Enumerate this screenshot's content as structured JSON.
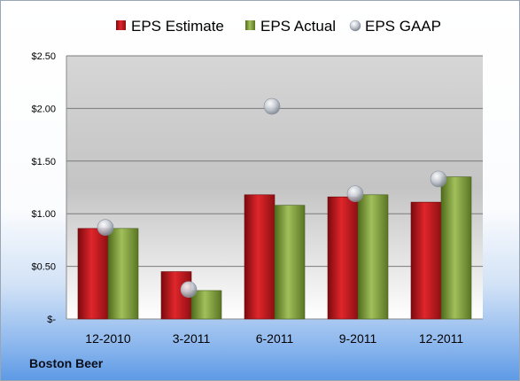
{
  "company": "Boston Beer",
  "chart_data": {
    "type": "bar",
    "categories": [
      "12-2010",
      "3-2011",
      "6-2011",
      "9-2011",
      "12-2011"
    ],
    "series": [
      {
        "name": "EPS Estimate",
        "kind": "bar",
        "values": [
          0.86,
          0.45,
          1.18,
          1.16,
          1.11
        ]
      },
      {
        "name": "EPS Actual",
        "kind": "bar",
        "values": [
          0.86,
          0.27,
          1.08,
          1.18,
          1.35
        ]
      },
      {
        "name": "EPS GAAP",
        "kind": "scatter",
        "values": [
          0.87,
          0.28,
          2.02,
          1.19,
          1.33
        ]
      }
    ],
    "yticks": [
      "$-",
      "$0.50",
      "$1.00",
      "$1.50",
      "$2.00",
      "$2.50"
    ],
    "ylim": [
      0,
      2.5
    ],
    "grid": true,
    "legend": "top",
    "colors": {
      "estimate": "#c0161c",
      "actual": "#7e9a3a",
      "gaap": "#b8bec8"
    }
  }
}
